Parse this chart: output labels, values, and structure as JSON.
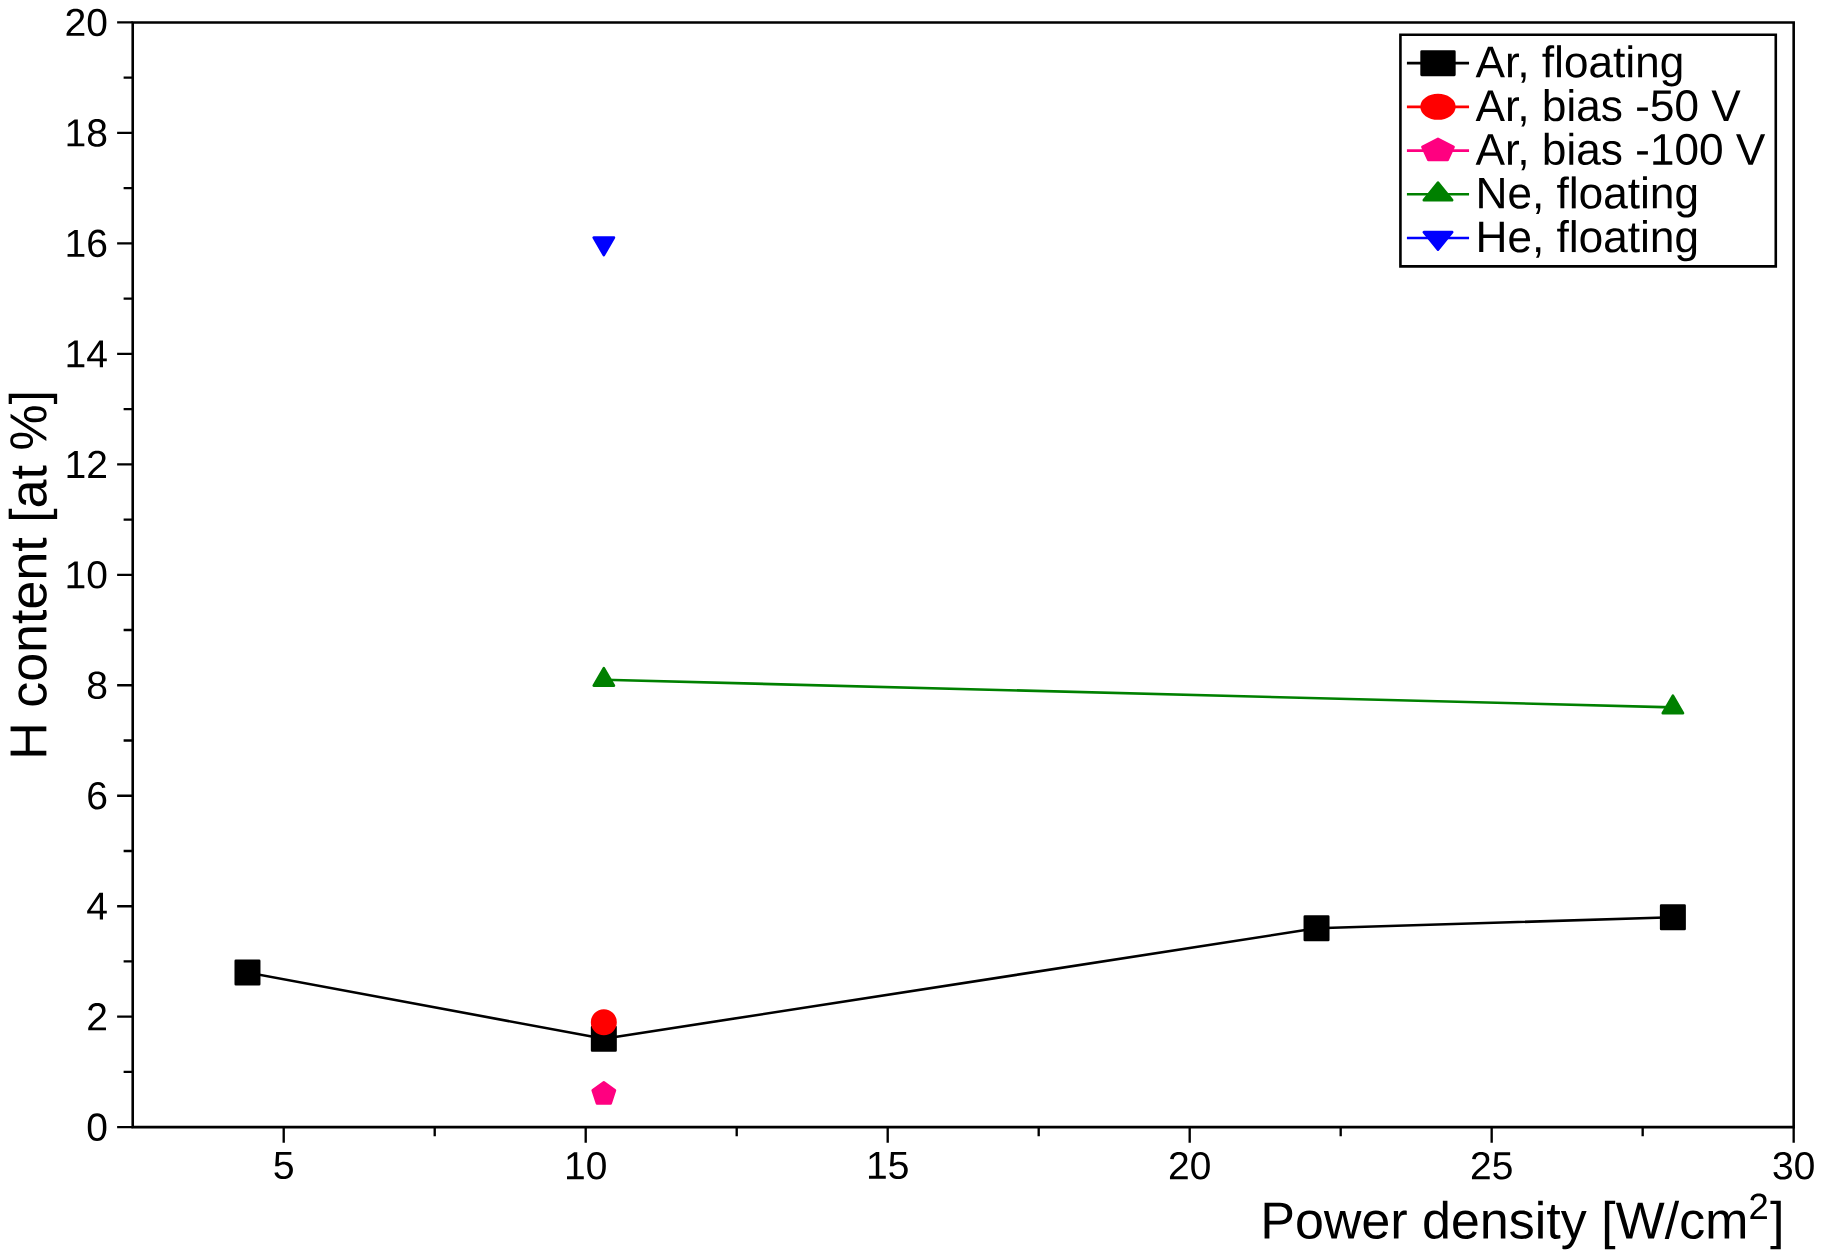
{
  "chart_data": {
    "type": "line",
    "xlabel": "Power density [W/cm$^{2}$]",
    "ylabel": "H content [at %]",
    "xlim": [
      2.5,
      30
    ],
    "xticks": [
      5,
      10,
      15,
      20,
      25,
      30
    ],
    "ylim": [
      0,
      20
    ],
    "yticks": [
      0,
      2,
      4,
      6,
      8,
      10,
      12,
      14,
      16,
      18,
      20
    ],
    "legend": "top right",
    "grid": false,
    "series": [
      {
        "name": "Ar, floating",
        "color": "#000000",
        "marker": "square",
        "x": [
          4.4,
          10.3,
          22.1,
          28.0
        ],
        "values": [
          2.8,
          1.6,
          3.6,
          3.8
        ]
      },
      {
        "name": "Ar, bias -50 V",
        "color": "#ff0000",
        "marker": "circle",
        "x": [
          10.3
        ],
        "values": [
          1.9
        ]
      },
      {
        "name": "Ar, bias -100 V",
        "color": "#ff0080",
        "marker": "star",
        "x": [
          10.3
        ],
        "values": [
          0.6
        ]
      },
      {
        "name": "Ne, floating",
        "color": "#008000",
        "marker": "triangle",
        "x": [
          10.3,
          28.0
        ],
        "values": [
          8.1,
          7.6
        ]
      },
      {
        "name": "He, floating",
        "color": "#0000ff",
        "marker": "triangle down",
        "x": [
          10.3
        ],
        "values": [
          16.0
        ]
      }
    ]
  }
}
